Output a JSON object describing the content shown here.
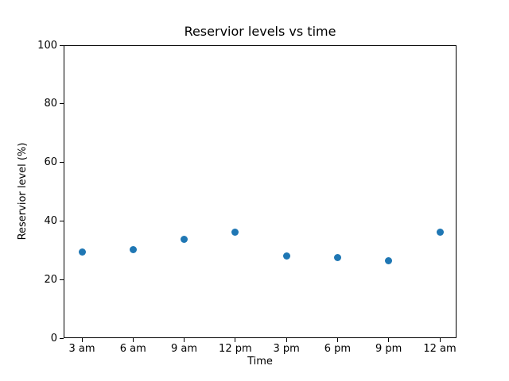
{
  "chart_data": {
    "type": "scatter",
    "title": "Reservior levels vs time",
    "xlabel": "Time",
    "ylabel": "Reservior level (%)",
    "categories": [
      "3 am",
      "6 am",
      "9 am",
      "12 pm",
      "3 pm",
      "6 pm",
      "9 pm",
      "12 am"
    ],
    "values": [
      29.4,
      30.2,
      33.8,
      36.2,
      28.0,
      27.6,
      26.4,
      36.2
    ],
    "ylim": [
      0,
      100
    ],
    "yticks": [
      0,
      20,
      40,
      60,
      80,
      100
    ],
    "grid": false,
    "legend": "none",
    "marker_color": "#1f77b4",
    "axis_color": "#000000",
    "background_color": "#ffffff"
  }
}
